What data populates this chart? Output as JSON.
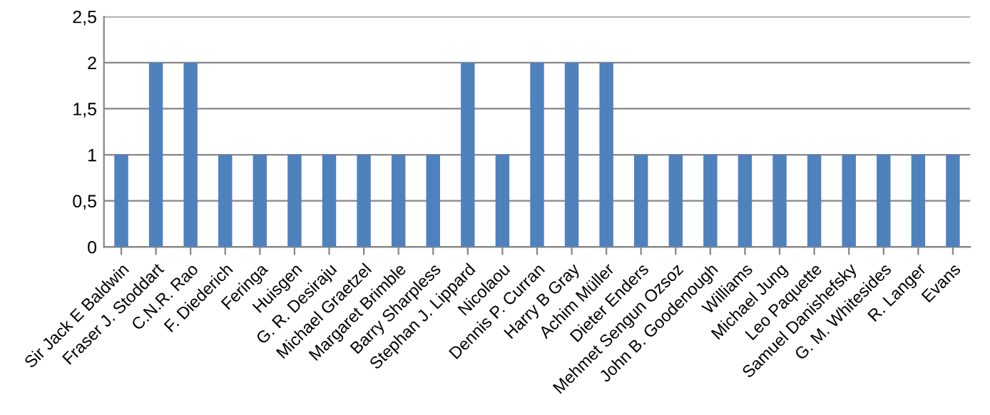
{
  "chart_data": {
    "type": "bar",
    "categories": [
      "Sir Jack E Baldwin",
      "Fraser J. Stoddart",
      "C.N.R. Rao",
      "F. Diederich",
      "Feringa",
      "Huisgen",
      "G. R. Desiraju",
      "Michael Graetzel",
      "Margaret Brimble",
      "Barry Sharpless",
      "Stephan J. Lippard",
      "Nicolaou",
      "Dennis P. Curran",
      "Harry B Gray",
      "Achim Müller",
      "Dieter Enders",
      "Mehmet Sengun Ozsoz",
      "John B. Goodenough",
      "Williams",
      "Michael Jung",
      "Leo Paquette",
      "Samuel Danishefsky",
      "G. M. Whitesides",
      "R. Langer",
      "Evans"
    ],
    "values": [
      1,
      2,
      2,
      1,
      1,
      1,
      1,
      1,
      1,
      1,
      2,
      1,
      2,
      2,
      2,
      1,
      1,
      1,
      1,
      1,
      1,
      1,
      1,
      1,
      1
    ],
    "color": "#4f81bd",
    "ylim": [
      0,
      2.5
    ],
    "yticks": [
      0,
      {
        "value": 0.5,
        "label": "0,5"
      },
      1,
      {
        "value": 1.5,
        "label": "1,5"
      },
      2,
      {
        "value": 2.5,
        "label": "2,5"
      }
    ],
    "grid": "y",
    "legend": false
  }
}
